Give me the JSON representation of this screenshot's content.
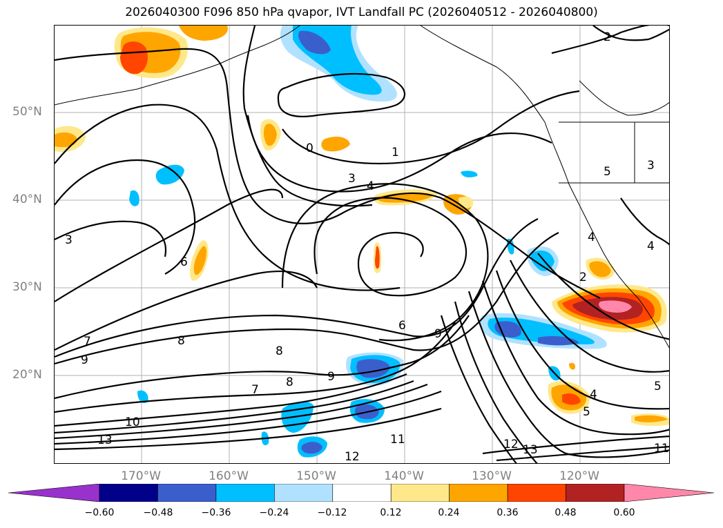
{
  "title": "2026040300 F096 850 hPa qvapor, IVT Landfall PC (2026040512 - 2026040800)",
  "lat_labels": [
    "50°N",
    "40°N",
    "30°N",
    "20°N"
  ],
  "lon_labels": [
    "170°W",
    "160°W",
    "150°W",
    "140°W",
    "130°W",
    "120°W"
  ],
  "colorbar": {
    "ticks": [
      "−0.60",
      "−0.48",
      "−0.36",
      "−0.24",
      "−0.12",
      "0.12",
      "0.24",
      "0.36",
      "0.48",
      "0.60"
    ],
    "colors": [
      "#9932cc",
      "#00008b",
      "#3a5fcd",
      "#00bfff",
      "#b0e2ff",
      "#ffffff",
      "#ffe88a",
      "#ffa500",
      "#ff4500",
      "#b22222",
      "#ff88aa"
    ]
  },
  "contour_labels": [
    "0",
    "1",
    "2",
    "3",
    "4",
    "5",
    "6",
    "7",
    "8",
    "9",
    "10",
    "11",
    "12",
    "13"
  ]
}
